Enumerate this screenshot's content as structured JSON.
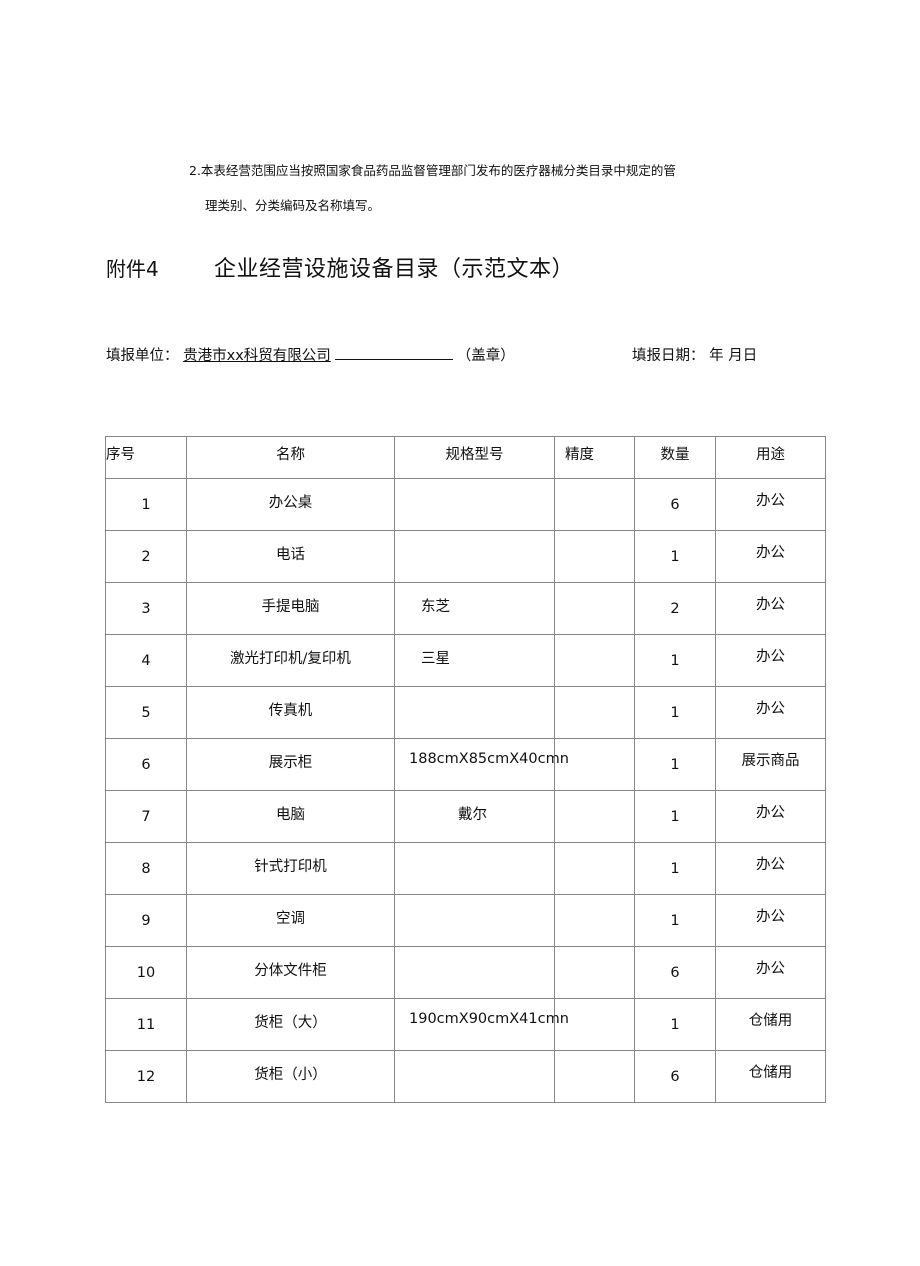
{
  "notes": {
    "line1": "2.本表经营范围应当按照国家食品药品监督管理部门发布的医疗器械分类目录中规定的管",
    "line2": "理类别、分类编码及名称填写。"
  },
  "attachment": "附件4",
  "title": "企业经营设施设备目录（示范文本）",
  "fill": {
    "unit_label": "填报单位：",
    "company": "贵港市xx科贸有限公司",
    "seal": "（盖章）",
    "date_label": "填报日期：",
    "date_value": "年 月日"
  },
  "table": {
    "headers": [
      "序号",
      "名称",
      "规格型号",
      "精度",
      "数量",
      "用途"
    ],
    "rows": [
      {
        "no": "1",
        "name": "办公桌",
        "spec": "",
        "precision": "",
        "qty": "6",
        "use": "办公"
      },
      {
        "no": "2",
        "name": "电话",
        "spec": "",
        "precision": "",
        "qty": "1",
        "use": "办公"
      },
      {
        "no": "3",
        "name": "手提电脑",
        "spec": "东芝",
        "precision": "",
        "qty": "2",
        "use": "办公"
      },
      {
        "no": "4",
        "name": "激光打印机/复印机",
        "spec": "三星",
        "precision": "",
        "qty": "1",
        "use": "办公"
      },
      {
        "no": "5",
        "name": "传真机",
        "spec": "",
        "precision": "",
        "qty": "1",
        "use": "办公"
      },
      {
        "no": "6",
        "name": "展示柜",
        "spec": "188cmX85cmX40cmn",
        "precision": "",
        "qty": "1",
        "use": "展示商品"
      },
      {
        "no": "7",
        "name": "电脑",
        "spec": "戴尔",
        "precision": "",
        "qty": "1",
        "use": "办公"
      },
      {
        "no": "8",
        "name": "针式打印机",
        "spec": "",
        "precision": "",
        "qty": "1",
        "use": "办公"
      },
      {
        "no": "9",
        "name": "空调",
        "spec": "",
        "precision": "",
        "qty": "1",
        "use": "办公"
      },
      {
        "no": "10",
        "name": "分体文件柜",
        "spec": "",
        "precision": "",
        "qty": "6",
        "use": "办公"
      },
      {
        "no": "11",
        "name": "货柜（大）",
        "spec": "190cmX90cmX41cmn",
        "precision": "",
        "qty": "1",
        "use": "仓储用"
      },
      {
        "no": "12",
        "name": "货柜（小）",
        "spec": "",
        "precision": "",
        "qty": "6",
        "use": "仓储用"
      }
    ]
  }
}
